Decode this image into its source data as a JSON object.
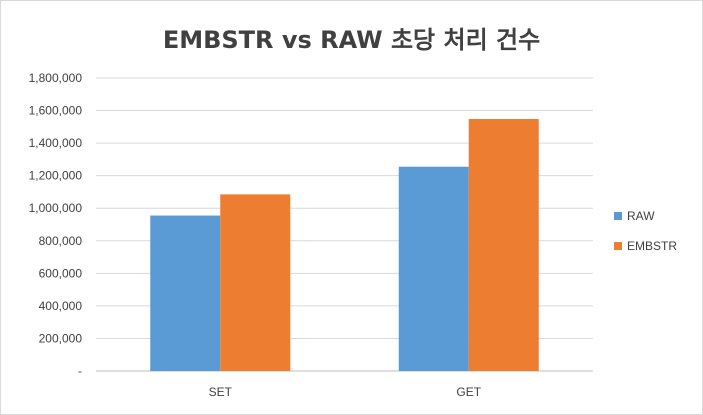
{
  "chart_data": {
    "type": "bar",
    "title": "EMBSTR vs RAW 초당 처리 건수",
    "categories": [
      "SET",
      "GET"
    ],
    "series": [
      {
        "name": "RAW",
        "values": [
          955000,
          1255000
        ],
        "color": "#5b9bd5"
      },
      {
        "name": "EMBSTR",
        "values": [
          1085000,
          1548000
        ],
        "color": "#ed7d31"
      }
    ],
    "ylim": [
      0,
      1800000
    ],
    "yticks": [
      "-",
      "200,000",
      "400,000",
      "600,000",
      "800,000",
      "1,000,000",
      "1,200,000",
      "1,400,000",
      "1,600,000",
      "1,800,000"
    ],
    "grid": true,
    "legend": "right"
  }
}
